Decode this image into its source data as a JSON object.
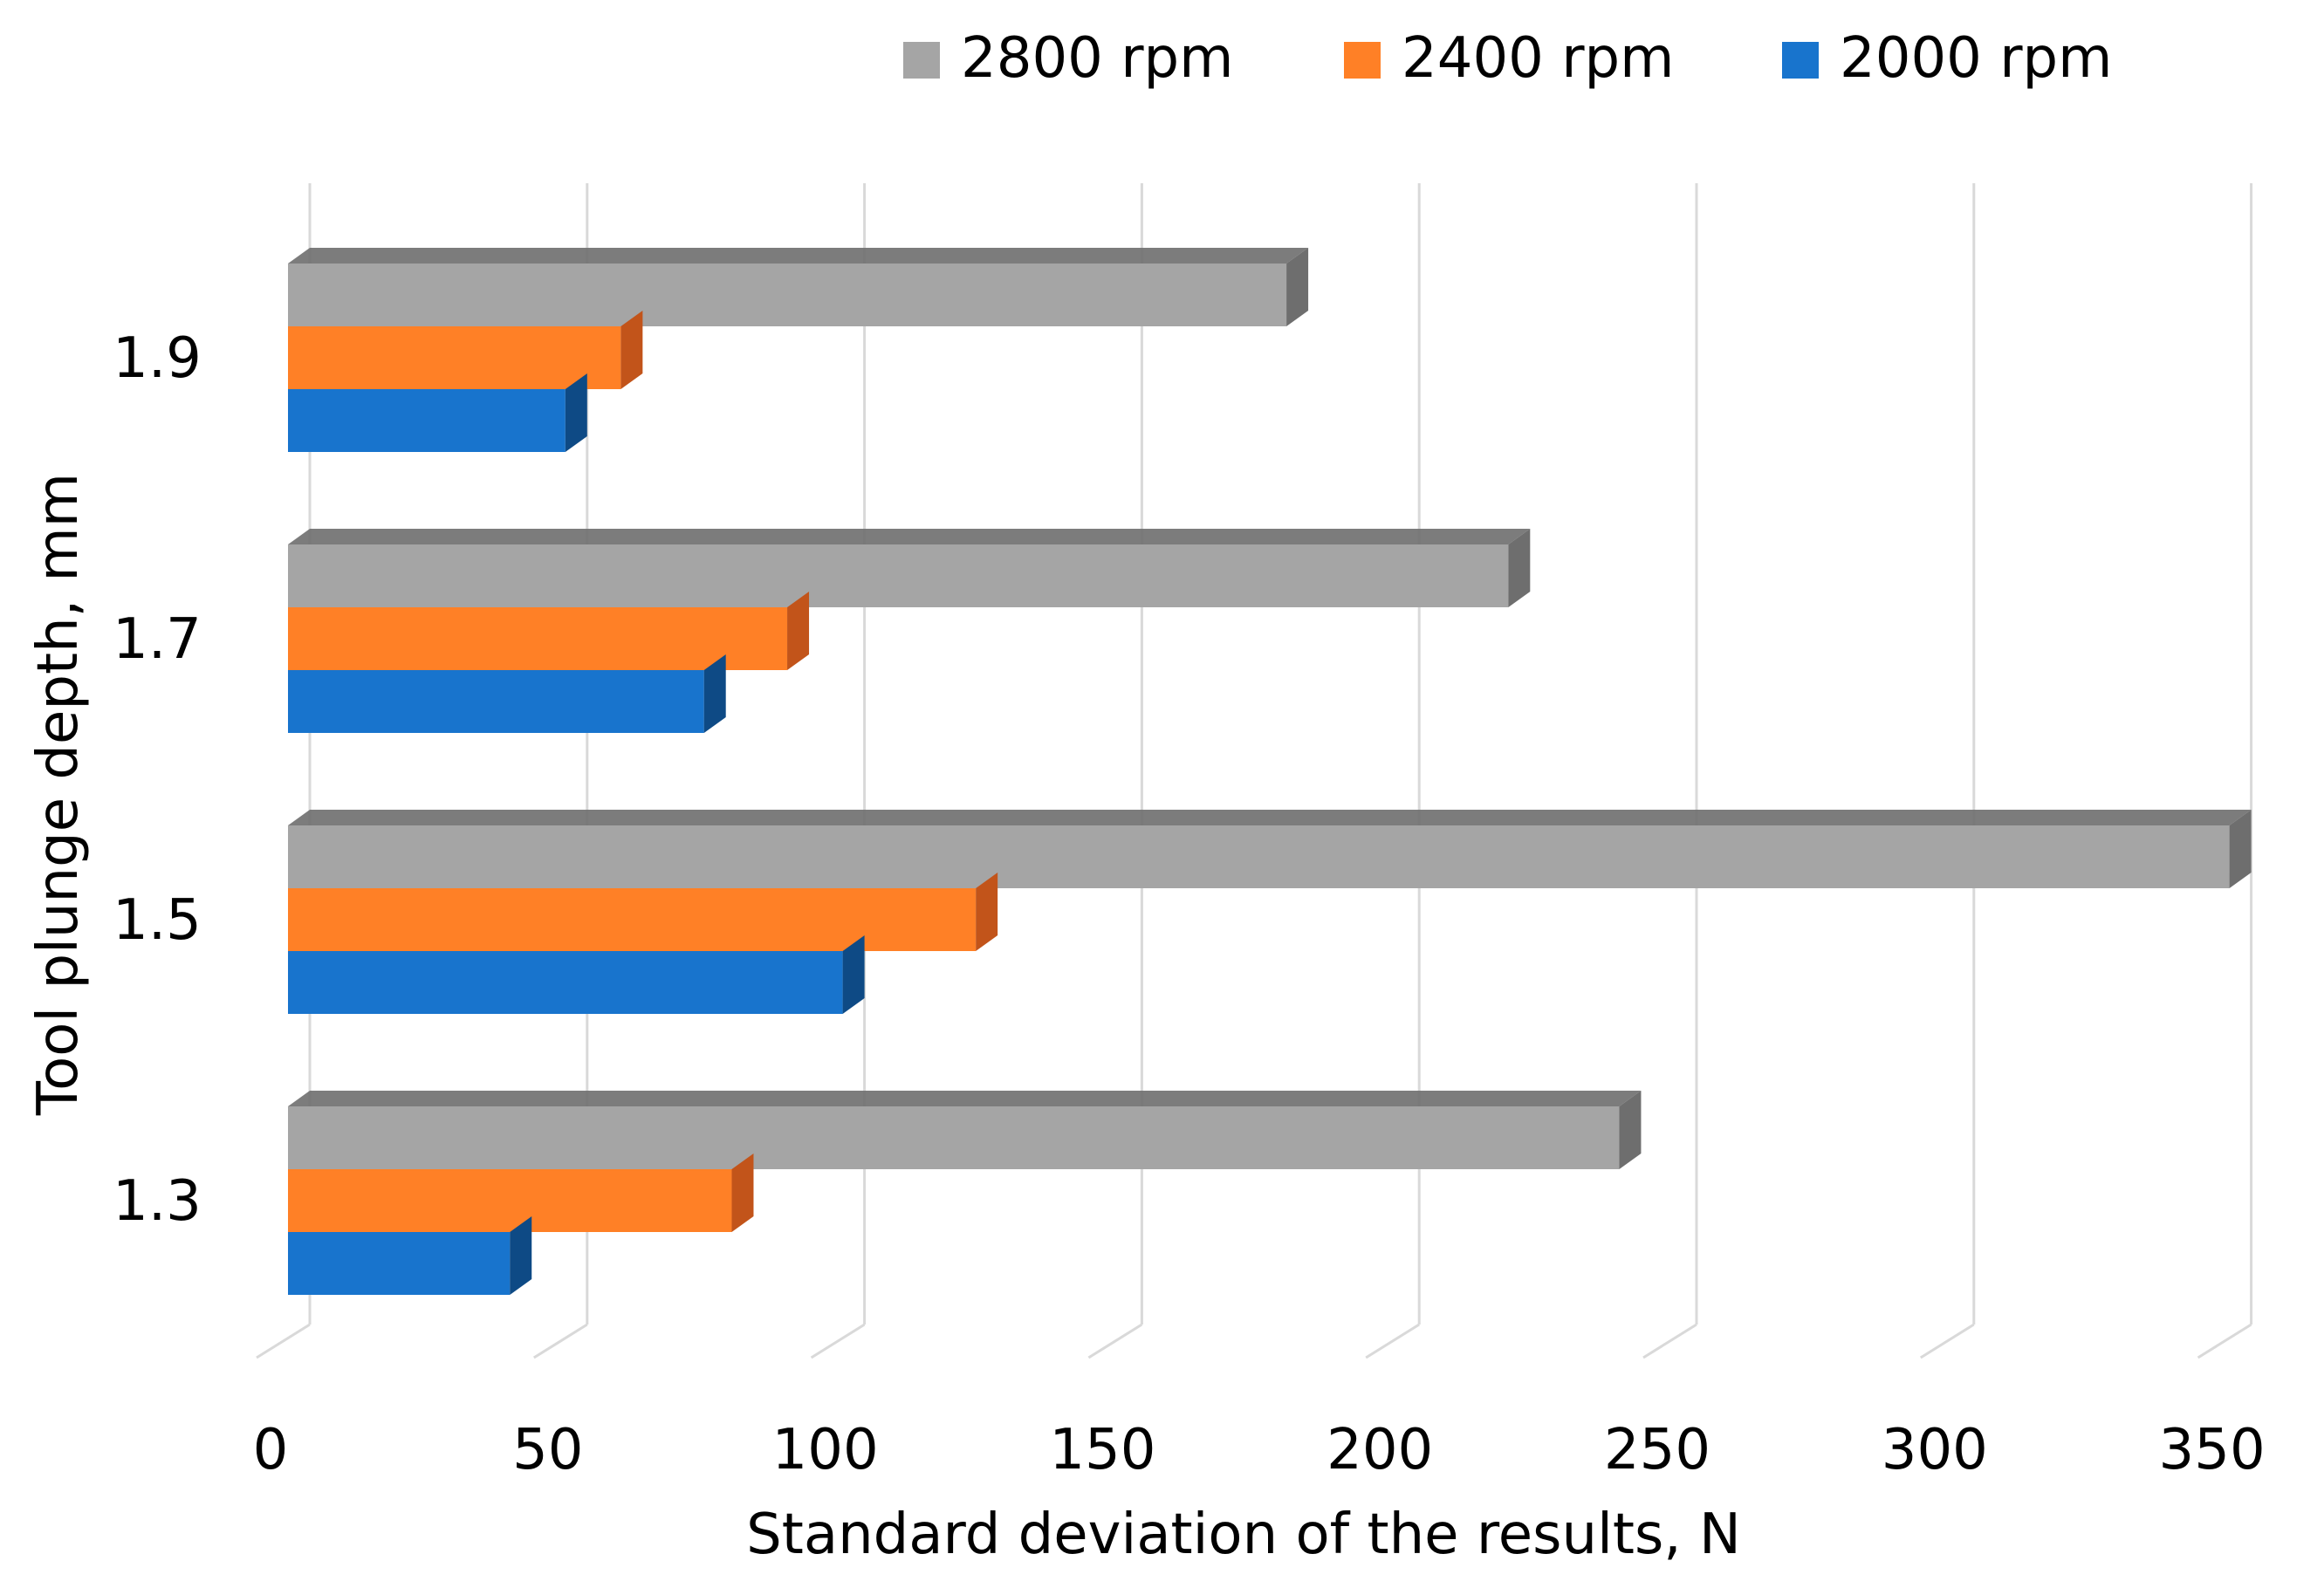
{
  "chart_data": {
    "type": "bar",
    "orientation": "horizontal",
    "style": "3d",
    "xlabel": "Standard deviation of the results, N",
    "ylabel": "Tool plunge depth, mm",
    "xlim": [
      0,
      350
    ],
    "xticks": [
      "0",
      "50",
      "100",
      "150",
      "200",
      "250",
      "300",
      "350"
    ],
    "tick_values": [
      0,
      50,
      100,
      150,
      200,
      250,
      300,
      350
    ],
    "categories": [
      "1.3",
      "1.5",
      "1.7",
      "1.9"
    ],
    "series": [
      {
        "name": "2000 rpm",
        "color": "#1874cd",
        "side_color": "#0e4a85",
        "values": [
          40,
          100,
          75,
          50
        ]
      },
      {
        "name": "2400 rpm",
        "color": "#ff8026",
        "side_color": "#c2541a",
        "values": [
          80,
          124,
          90,
          60
        ]
      },
      {
        "name": "2800 rpm",
        "color": "#a5a5a5",
        "side_color": "#6e6e6e",
        "values": [
          240,
          350,
          220,
          180
        ]
      }
    ],
    "legend_order": [
      "2800 rpm",
      "2400 rpm",
      "2000 rpm"
    ],
    "legend_position": "top",
    "grid": true,
    "grid_color": "#d9d9d9"
  }
}
